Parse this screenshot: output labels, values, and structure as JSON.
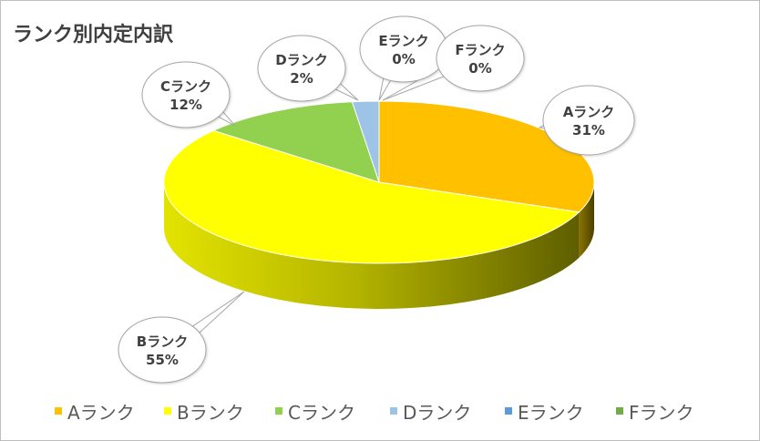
{
  "title": "ランク別内定内訳",
  "chart_data": {
    "type": "pie",
    "title": "ランク別内定内訳",
    "categories": [
      "Aランク",
      "Bランク",
      "Cランク",
      "Dランク",
      "Eランク",
      "Fランク"
    ],
    "values": [
      31,
      55,
      12,
      2,
      0,
      0
    ],
    "labels": [
      "31%",
      "55%",
      "12%",
      "2%",
      "0%",
      "0%"
    ],
    "colors": [
      "#FFC000",
      "#FFFF00",
      "#92D050",
      "#9DC3E6",
      "#5B9BD5",
      "#70AD47"
    ],
    "legend_position": "bottom",
    "style": "3d"
  },
  "legend": {
    "items": [
      "Aランク",
      "Bランク",
      "Cランク",
      "Dランク",
      "Eランク",
      "Fランク"
    ]
  }
}
